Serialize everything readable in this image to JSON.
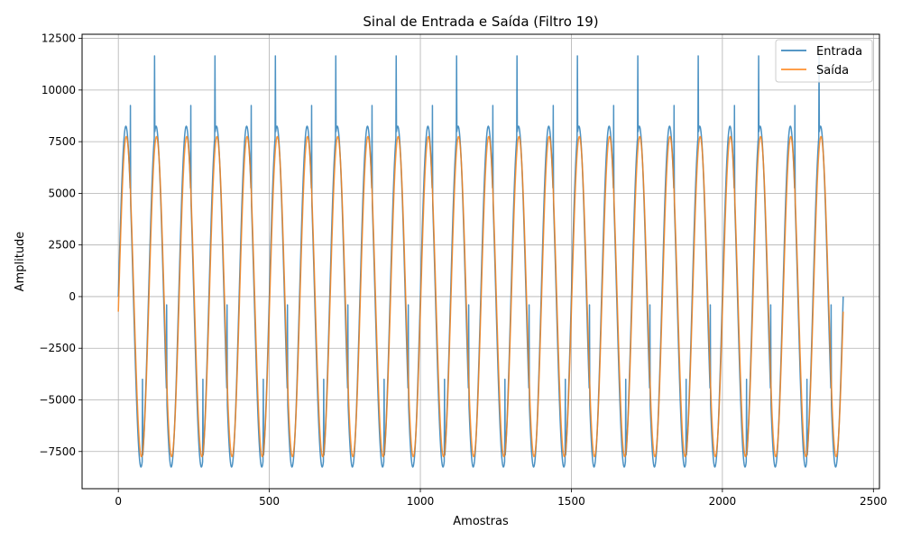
{
  "chart_data": {
    "type": "line",
    "title": "Sinal de Entrada e Saída (Filtro 19)",
    "xlabel": "Amostras",
    "ylabel": "Amplitude",
    "xlim": [
      -120,
      2520
    ],
    "ylim": [
      -9300,
      12700
    ],
    "xticks": [
      0,
      500,
      1000,
      1500,
      2000,
      2500
    ],
    "yticks": [
      -7500,
      -5000,
      -2500,
      0,
      2500,
      5000,
      7500,
      10000,
      12500
    ],
    "grid": true,
    "legend_position": "top-right",
    "x_range": [
      0,
      2400
    ],
    "period": 100,
    "series": [
      {
        "name": "Entrada",
        "color": "#1f77b4",
        "amplitude": 8250,
        "spikes": [
          {
            "x": 40,
            "value": 9250
          },
          {
            "x": 80,
            "value": -4000
          },
          {
            "x": 120,
            "value": 11650
          },
          {
            "x": 160,
            "value": -400
          },
          {
            "x": 200,
            "value": 3500
          }
        ]
      },
      {
        "name": "Saída",
        "color": "#ff7f0e",
        "amplitude": 7750,
        "phase_lag": 1.5
      }
    ]
  }
}
